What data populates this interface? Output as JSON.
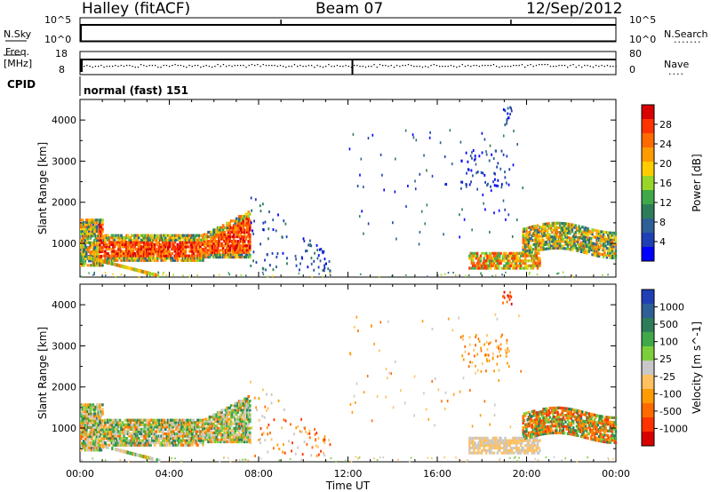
{
  "header": {
    "station": "Halley (fitACF)",
    "beam": "Beam 07",
    "date": "12/Sep/2012"
  },
  "status_panels": {
    "nsky": {
      "label": "N.Sky",
      "tick_top": "10^5",
      "tick_bottom": "10^0"
    },
    "nsearch": {
      "label": "N.Search",
      "dots": ".......",
      "tick_top": "10^5",
      "tick_bottom": "10^0"
    },
    "freq": {
      "label_line1": "Freq.",
      "label_line2": "[MHz]",
      "tick_top": "18",
      "tick_bottom": "8"
    },
    "nave": {
      "label": "Nave",
      "dots": "....",
      "tick_top": "80",
      "tick_bottom": "0"
    },
    "cpid": {
      "label": "CPID",
      "value": "normal (fast) 151"
    }
  },
  "chart_data": [
    {
      "type": "heatmap",
      "panel": "power",
      "ylabel": "Slant Range [km]",
      "xlabel": "",
      "yticks": [
        1000,
        2000,
        3000,
        4000
      ],
      "ylim": [
        180,
        4500
      ],
      "colorbar_label": "Power [dB]",
      "colorbar_ticks": [
        "28",
        "24",
        "20",
        "16",
        "12",
        "8",
        "4"
      ],
      "colorbar_colors": [
        "#d90000",
        "#ff3300",
        "#ff6a00",
        "#ff9a00",
        "#ffcc00",
        "#9ad52a",
        "#3fa84a",
        "#2e7d5a",
        "#2e5f96",
        "#1f3fb5",
        "#0000ff"
      ],
      "echo_regions": [
        {
          "t_start": 0.0,
          "t_end": 7.6,
          "r_min": 600,
          "r_max": 1700,
          "level": "high"
        },
        {
          "t_start": 7.6,
          "t_end": 11.0,
          "r_min": 400,
          "r_max": 2200,
          "level": "low_sparse"
        },
        {
          "t_start": 17.5,
          "t_end": 20.5,
          "r_min": 450,
          "r_max": 850,
          "level": "medium"
        },
        {
          "t_start": 20.0,
          "t_end": 24.0,
          "r_min": 800,
          "r_max": 1500,
          "level": "medium"
        },
        {
          "t_start": 15.0,
          "t_end": 19.0,
          "r_min": 1500,
          "r_max": 3500,
          "level": "low_sparse"
        }
      ]
    },
    {
      "type": "heatmap",
      "panel": "velocity",
      "ylabel": "Slant Range [km]",
      "xlabel": "Time UT",
      "yticks": [
        1000,
        2000,
        3000,
        4000
      ],
      "ylim": [
        180,
        4500
      ],
      "xticks": [
        "00:00",
        "04:00",
        "08:00",
        "12:00",
        "16:00",
        "20:00",
        "00:00"
      ],
      "xlim_hours": [
        0,
        24
      ],
      "colorbar_label": "Velocity [m s^-1]",
      "colorbar_ticks": [
        "1000",
        "500",
        "100",
        "25",
        "-25",
        "-100",
        "-500",
        "-1000"
      ],
      "colorbar_colors": [
        "#1f3fb5",
        "#2e5f96",
        "#2e7d5a",
        "#3fa84a",
        "#7ccf3a",
        "#c8c8c8",
        "#ffc060",
        "#ff9a00",
        "#ff6a00",
        "#ff3300",
        "#d90000"
      ],
      "echo_regions": [
        {
          "t_start": 0.0,
          "t_end": 7.6,
          "r_min": 600,
          "r_max": 1700,
          "level": "mixed_green_orange"
        },
        {
          "t_start": 7.6,
          "t_end": 11.0,
          "r_min": 400,
          "r_max": 2200,
          "level": "negative_sparse"
        },
        {
          "t_start": 17.5,
          "t_end": 20.5,
          "r_min": 450,
          "r_max": 850,
          "level": "near_zero"
        },
        {
          "t_start": 20.0,
          "t_end": 24.0,
          "r_min": 800,
          "r_max": 1500,
          "level": "negative"
        }
      ]
    }
  ]
}
